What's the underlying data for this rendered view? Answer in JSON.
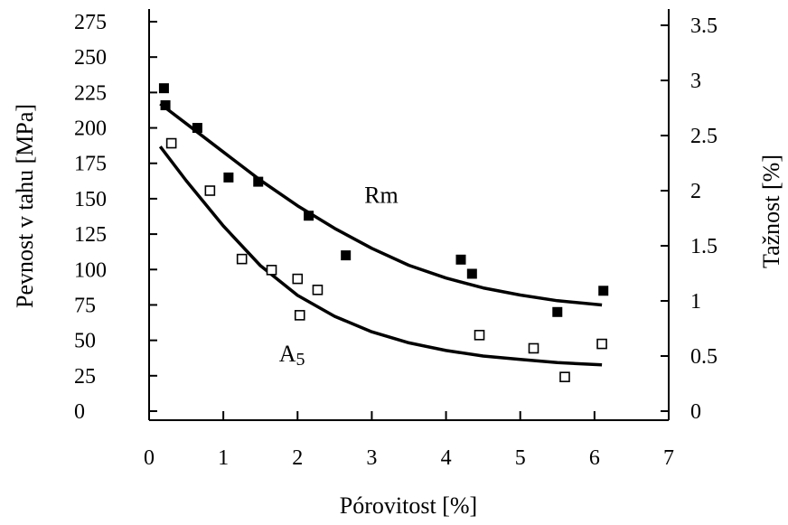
{
  "chart_data": {
    "type": "scatter",
    "xlabel": "Pórovitost [%]",
    "ylabel_left": "Pevnost v tahu  [MPa]",
    "ylabel_right": "Tažnost [%]",
    "xlim": [
      0,
      7
    ],
    "ylim_left": [
      0,
      275
    ],
    "ylim_right": [
      0,
      3.5
    ],
    "x_ticks": [
      "0",
      "1",
      "2",
      "3",
      "4",
      "5",
      "6",
      "7"
    ],
    "y_left_ticks": [
      "0",
      "25",
      "50",
      "75",
      "100",
      "125",
      "150",
      "175",
      "200",
      "225",
      "250",
      "275"
    ],
    "y_right_ticks": [
      "0",
      "0.5",
      "1",
      "1.5",
      "2",
      "2.5",
      "3",
      "3.5"
    ],
    "grid": false,
    "series": [
      {
        "name": "Rm",
        "axis": "left",
        "marker": "filled-square",
        "points": [
          {
            "x": 0.2,
            "y": 228
          },
          {
            "x": 0.22,
            "y": 216
          },
          {
            "x": 0.65,
            "y": 200
          },
          {
            "x": 1.07,
            "y": 165
          },
          {
            "x": 1.47,
            "y": 162
          },
          {
            "x": 2.15,
            "y": 138
          },
          {
            "x": 2.65,
            "y": 110
          },
          {
            "x": 4.2,
            "y": 107
          },
          {
            "x": 4.35,
            "y": 97
          },
          {
            "x": 5.5,
            "y": 70
          },
          {
            "x": 6.12,
            "y": 85
          }
        ],
        "fit": [
          {
            "x": 0.15,
            "y": 217
          },
          {
            "x": 0.5,
            "y": 203
          },
          {
            "x": 1.0,
            "y": 183
          },
          {
            "x": 1.5,
            "y": 163
          },
          {
            "x": 2.0,
            "y": 145
          },
          {
            "x": 2.5,
            "y": 129
          },
          {
            "x": 3.0,
            "y": 115
          },
          {
            "x": 3.5,
            "y": 103
          },
          {
            "x": 4.0,
            "y": 94
          },
          {
            "x": 4.5,
            "y": 87
          },
          {
            "x": 5.0,
            "y": 82
          },
          {
            "x": 5.5,
            "y": 78
          },
          {
            "x": 6.1,
            "y": 75
          }
        ]
      },
      {
        "name": "A5",
        "axis": "right",
        "marker": "open-square",
        "points": [
          {
            "x": 0.3,
            "y": 2.43
          },
          {
            "x": 0.82,
            "y": 2.0
          },
          {
            "x": 1.25,
            "y": 1.38
          },
          {
            "x": 1.65,
            "y": 1.28
          },
          {
            "x": 2.0,
            "y": 1.2
          },
          {
            "x": 2.03,
            "y": 0.87
          },
          {
            "x": 2.27,
            "y": 1.1
          },
          {
            "x": 4.45,
            "y": 0.69
          },
          {
            "x": 5.18,
            "y": 0.57
          },
          {
            "x": 5.6,
            "y": 0.31
          },
          {
            "x": 6.1,
            "y": 0.61
          }
        ],
        "fit": [
          {
            "x": 0.15,
            "y": 2.4
          },
          {
            "x": 0.5,
            "y": 2.09
          },
          {
            "x": 1.0,
            "y": 1.68
          },
          {
            "x": 1.5,
            "y": 1.32
          },
          {
            "x": 2.0,
            "y": 1.05
          },
          {
            "x": 2.5,
            "y": 0.86
          },
          {
            "x": 3.0,
            "y": 0.72
          },
          {
            "x": 3.5,
            "y": 0.62
          },
          {
            "x": 4.0,
            "y": 0.55
          },
          {
            "x": 4.5,
            "y": 0.5
          },
          {
            "x": 5.0,
            "y": 0.47
          },
          {
            "x": 5.5,
            "y": 0.44
          },
          {
            "x": 6.1,
            "y": 0.42
          }
        ]
      }
    ],
    "annotations": [
      {
        "text": "Rm",
        "x": 2.9,
        "y_left": 147
      },
      {
        "text": "A",
        "subscript": "5",
        "x": 1.75,
        "y_left": 35
      }
    ]
  }
}
